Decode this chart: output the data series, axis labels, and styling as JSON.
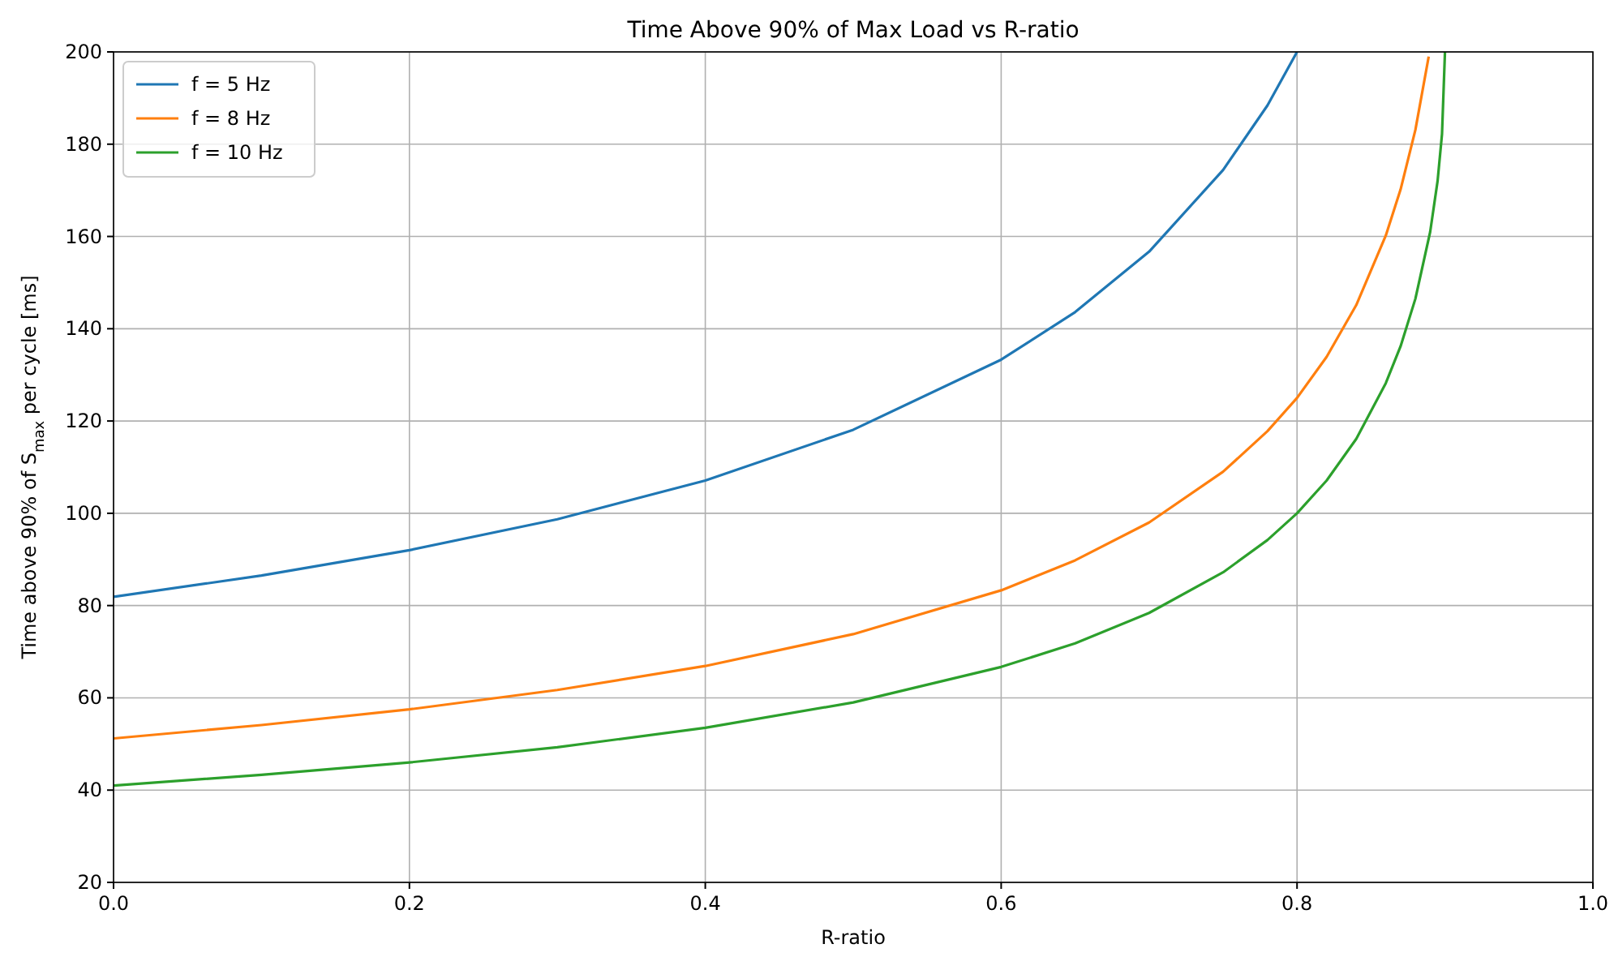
{
  "chart_data": {
    "type": "line",
    "title": "Time Above 90% of Max Load vs R-ratio",
    "xlabel": "R-ratio",
    "ylabel": "Time above 90% of S$_{max}$ per cycle [ms]",
    "xlim": [
      0,
      1
    ],
    "ylim": [
      20,
      200
    ],
    "xticks": [
      {
        "value": 0,
        "label": "0.0"
      },
      0.2,
      0.4,
      0.6,
      0.8,
      {
        "value": 1,
        "label": "1.0"
      }
    ],
    "yticks": [
      20,
      40,
      60,
      80,
      100,
      120,
      140,
      160,
      180,
      200
    ],
    "grid": true,
    "legend": "top left",
    "line_style": "solid",
    "marker": "none",
    "series": [
      {
        "name": "f = 5 Hz",
        "color": "#1f77b4",
        "x": [
          0,
          0.1,
          0.2,
          0.3,
          0.4,
          0.5,
          0.6,
          0.65,
          0.7,
          0.75,
          0.78,
          0.8
        ],
        "values": [
          81.9,
          86.5,
          92.0,
          98.7,
          107.1,
          118.1,
          133.3,
          143.6,
          156.7,
          174.4,
          188.4,
          200
        ]
      },
      {
        "name": "f = 8 Hz",
        "color": "#ff7f0e",
        "x": [
          0,
          0.1,
          0.2,
          0.3,
          0.4,
          0.5,
          0.6,
          0.65,
          0.7,
          0.75,
          0.78,
          0.8,
          0.82,
          0.84,
          0.86,
          0.87,
          0.88,
          0.889
        ],
        "values": [
          51.2,
          54.1,
          57.5,
          61.7,
          66.9,
          73.8,
          83.3,
          89.8,
          98.0,
          109.0,
          117.8,
          125,
          133.9,
          145.1,
          160.2,
          170.2,
          183.1,
          199.0
        ]
      },
      {
        "name": "f = 10 Hz",
        "color": "#2ca02c",
        "x": [
          0,
          0.1,
          0.2,
          0.3,
          0.4,
          0.5,
          0.6,
          0.65,
          0.7,
          0.75,
          0.78,
          0.8,
          0.82,
          0.84,
          0.86,
          0.87,
          0.88,
          0.89,
          0.895,
          0.898,
          0.9
        ],
        "values": [
          41.0,
          43.3,
          46.0,
          49.3,
          53.5,
          59.0,
          66.7,
          71.8,
          78.4,
          87.2,
          94.2,
          100,
          107.1,
          116.1,
          128.2,
          136.2,
          146.5,
          161.0,
          172.0,
          182.2,
          200
        ]
      }
    ]
  }
}
